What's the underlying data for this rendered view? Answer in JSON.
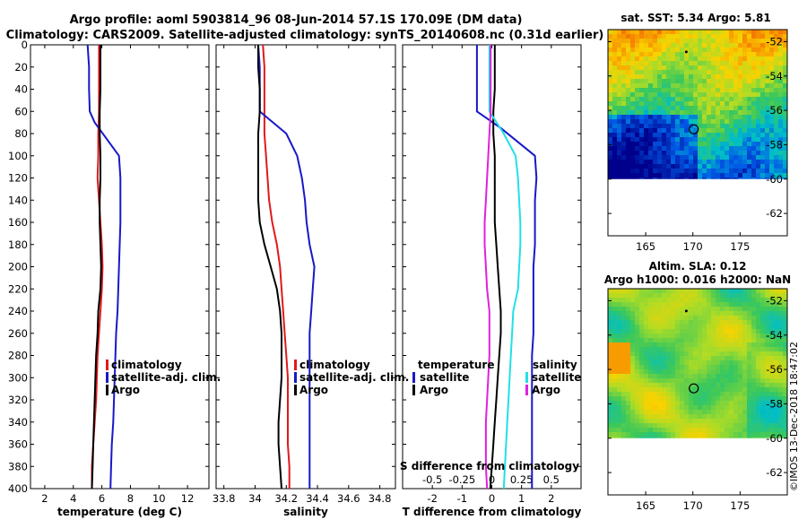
{
  "figure": {
    "title_line1": "Argo profile: aoml 5903814_96 08-Jun-2014 57.1S 170.09E (DM data)",
    "title_line2": "Climatology: CARS2009. Satellite-adjusted climatology: synTS_20140608.nc (0.31d earlier)",
    "credit": "©IMOS 13-Dec-2018 18:47:02"
  },
  "colors": {
    "climatology": "#e0191b",
    "satellite": "#1818c8",
    "argo": "#000000",
    "sal_satellite": "#22e0e6",
    "sal_argo": "#e020e0"
  },
  "depth_ticks": [
    "0",
    "20",
    "40",
    "60",
    "80",
    "100",
    "120",
    "140",
    "160",
    "180",
    "200",
    "220",
    "240",
    "260",
    "280",
    "300",
    "320",
    "340",
    "360",
    "380",
    "400"
  ],
  "chart_data": [
    {
      "id": "temperature",
      "type": "line",
      "xlabel": "temperature (deg C)",
      "ylabel": "depth",
      "xlim": [
        1,
        13.5
      ],
      "ylim": [
        400,
        0
      ],
      "xticks": [
        "2",
        "4",
        "6",
        "8",
        "10",
        "12"
      ],
      "xtick_values": [
        2,
        4,
        6,
        8,
        10,
        12
      ],
      "legend": [
        "climatology",
        "satellite-adj. clim.",
        "Argo"
      ],
      "series": [
        {
          "name": "climatology",
          "color": "#e0191b",
          "x": [
            5.8,
            5.8,
            5.8,
            5.8,
            5.75,
            5.75,
            5.7,
            5.8,
            5.9,
            6.0,
            6.05,
            6.0,
            5.9,
            5.8,
            5.7,
            5.65,
            5.6,
            5.5,
            5.4,
            5.3,
            5.3
          ],
          "y": [
            0,
            20,
            40,
            60,
            80,
            100,
            120,
            140,
            160,
            180,
            200,
            220,
            240,
            260,
            280,
            300,
            320,
            340,
            360,
            380,
            400
          ]
        },
        {
          "name": "satellite-adj. clim.",
          "color": "#1818c8",
          "x": [
            5.0,
            5.1,
            5.1,
            5.15,
            5.5,
            7.2,
            7.3,
            7.3,
            7.3,
            7.25,
            7.2,
            7.15,
            7.1,
            7.0,
            6.95,
            6.9,
            6.85,
            6.8,
            6.7,
            6.65,
            6.6
          ],
          "y": [
            0,
            20,
            40,
            60,
            70,
            100,
            120,
            140,
            160,
            180,
            200,
            220,
            240,
            260,
            280,
            300,
            320,
            340,
            360,
            380,
            400
          ]
        },
        {
          "name": "Argo",
          "color": "#000000",
          "x": [
            5.9,
            5.9,
            5.9,
            5.85,
            5.85,
            5.9,
            5.9,
            5.85,
            5.85,
            5.9,
            5.95,
            5.9,
            5.75,
            5.7,
            5.6,
            5.55,
            5.5,
            5.45,
            5.4,
            5.35,
            5.3
          ],
          "y": [
            0,
            20,
            40,
            60,
            80,
            100,
            120,
            140,
            160,
            180,
            200,
            220,
            240,
            260,
            280,
            300,
            320,
            340,
            360,
            380,
            400
          ]
        }
      ]
    },
    {
      "id": "salinity",
      "type": "line",
      "xlabel": "salinity",
      "ylabel": "depth",
      "xlim": [
        33.75,
        34.9
      ],
      "ylim": [
        400,
        0
      ],
      "xticks": [
        "33.8",
        "34",
        "34.2",
        "34.4",
        "34.6",
        "34.8"
      ],
      "xtick_values": [
        33.8,
        34.0,
        34.2,
        34.4,
        34.6,
        34.8
      ],
      "legend": [
        "climatology",
        "satellite-adj. clim.",
        "Argo"
      ],
      "series": [
        {
          "name": "climatology",
          "color": "#e0191b",
          "x": [
            34.05,
            34.06,
            34.06,
            34.06,
            34.06,
            34.07,
            34.08,
            34.09,
            34.11,
            34.14,
            34.16,
            34.17,
            34.18,
            34.19,
            34.2,
            34.21,
            34.21,
            34.21,
            34.21,
            34.22,
            34.22
          ],
          "y": [
            0,
            20,
            40,
            60,
            80,
            100,
            120,
            140,
            160,
            180,
            200,
            220,
            240,
            260,
            280,
            300,
            320,
            340,
            360,
            380,
            400
          ]
        },
        {
          "name": "satellite-adj. clim.",
          "color": "#1818c8",
          "x": [
            34.02,
            34.03,
            34.03,
            34.03,
            34.2,
            34.27,
            34.3,
            34.32,
            34.33,
            34.35,
            34.38,
            34.37,
            34.36,
            34.35,
            34.35,
            34.35,
            34.35,
            34.35,
            34.35,
            34.35,
            34.35
          ],
          "y": [
            0,
            20,
            40,
            60,
            80,
            100,
            120,
            140,
            160,
            180,
            200,
            220,
            240,
            260,
            280,
            300,
            320,
            340,
            360,
            380,
            400
          ]
        },
        {
          "name": "Argo",
          "color": "#000000",
          "x": [
            34.02,
            34.02,
            34.03,
            34.03,
            34.02,
            34.02,
            34.02,
            34.02,
            34.03,
            34.06,
            34.1,
            34.14,
            34.16,
            34.17,
            34.17,
            34.17,
            34.16,
            34.15,
            34.15,
            34.16,
            34.17
          ],
          "y": [
            0,
            20,
            40,
            60,
            80,
            100,
            120,
            140,
            160,
            180,
            200,
            220,
            240,
            260,
            280,
            300,
            320,
            340,
            360,
            380,
            400
          ]
        }
      ]
    },
    {
      "id": "difference",
      "type": "line",
      "xlabel": "T difference from climatology",
      "xlabel_top": "S difference from climatology",
      "ylabel": "depth",
      "xlim": [
        -3,
        3
      ],
      "ylim": [
        400,
        0
      ],
      "xticks": [
        "-2",
        "-1",
        "0",
        "1",
        "2"
      ],
      "xtick_values": [
        -2,
        -1,
        0,
        1,
        2
      ],
      "sticks": [
        "-0.5",
        "-0.25",
        "0",
        "0.25",
        "0.5"
      ],
      "stick_values": [
        -0.5,
        -0.25,
        0,
        0.25,
        0.5
      ],
      "legend_temperature_title": "temperature",
      "legend_temperature": [
        "satellite",
        "Argo"
      ],
      "legend_salinity_title": "salinity",
      "legend_salinity": [
        "satellite",
        "Argo"
      ],
      "series": [
        {
          "name": "T satellite",
          "color": "#1818c8",
          "axis": "T",
          "x": [
            -0.5,
            -0.5,
            -0.5,
            -0.5,
            0.3,
            1.45,
            1.5,
            1.45,
            1.45,
            1.45,
            1.4,
            1.4,
            1.4,
            1.4,
            1.35,
            1.35,
            1.35,
            1.35,
            1.35,
            1.35,
            1.35
          ],
          "y": [
            0,
            20,
            40,
            60,
            75,
            100,
            120,
            140,
            160,
            180,
            200,
            220,
            240,
            260,
            280,
            300,
            320,
            340,
            360,
            380,
            400
          ]
        },
        {
          "name": "T Argo",
          "color": "#000000",
          "axis": "T",
          "x": [
            0.1,
            0.1,
            0.1,
            0.05,
            0.05,
            0.1,
            0.1,
            0.1,
            0.1,
            0.15,
            0.2,
            0.25,
            0.3,
            0.3,
            0.25,
            0.2,
            0.15,
            0.1,
            0.05,
            0.0,
            -0.05
          ],
          "y": [
            0,
            20,
            40,
            60,
            80,
            100,
            120,
            140,
            160,
            180,
            200,
            220,
            240,
            260,
            280,
            300,
            320,
            340,
            360,
            380,
            400
          ]
        },
        {
          "name": "S satellite",
          "color": "#22e0e6",
          "axis": "S",
          "x": [
            -0.02,
            -0.02,
            -0.02,
            -0.02,
            0.1,
            0.2,
            0.22,
            0.23,
            0.24,
            0.24,
            0.23,
            0.22,
            0.18,
            0.17,
            0.16,
            0.15,
            0.14,
            0.13,
            0.12,
            0.11,
            0.1
          ],
          "y": [
            0,
            20,
            40,
            60,
            80,
            100,
            120,
            140,
            160,
            180,
            200,
            220,
            240,
            260,
            280,
            300,
            320,
            340,
            360,
            380,
            400
          ]
        },
        {
          "name": "S Argo",
          "color": "#e020e0",
          "axis": "S",
          "x": [
            -0.01,
            -0.01,
            -0.01,
            -0.01,
            -0.02,
            -0.03,
            -0.04,
            -0.05,
            -0.06,
            -0.06,
            -0.05,
            -0.04,
            -0.02,
            -0.02,
            -0.02,
            -0.03,
            -0.04,
            -0.05,
            -0.05,
            -0.05,
            -0.04
          ],
          "y": [
            0,
            20,
            40,
            60,
            80,
            100,
            120,
            140,
            160,
            180,
            200,
            220,
            240,
            260,
            280,
            300,
            320,
            340,
            360,
            380,
            400
          ]
        }
      ]
    },
    {
      "id": "sst_map",
      "type": "heatmap",
      "title": "sat. SST: 5.34 Argo: 5.81",
      "xticks": [
        "165",
        "170",
        "175"
      ],
      "xtick_values": [
        165,
        170,
        175
      ],
      "yticks": [
        "-52",
        "-54",
        "-56",
        "-58",
        "-60",
        "-62"
      ],
      "ytick_values": [
        -52,
        -54,
        -56,
        -58,
        -60,
        -62
      ],
      "xlim": [
        161,
        180
      ],
      "ylim": [
        -63.3,
        -51.3
      ],
      "data_ylim": [
        -60,
        -51.3
      ],
      "argo_position": [
        170.09,
        -57.1
      ]
    },
    {
      "id": "sla_map",
      "type": "heatmap",
      "title_line1": "Altim. SLA: 0.12",
      "title_line2": "Argo h1000: 0.016 h2000: NaN",
      "xticks": [
        "165",
        "170",
        "175"
      ],
      "xtick_values": [
        165,
        170,
        175
      ],
      "yticks": [
        "-52",
        "-54",
        "-56",
        "-58",
        "-60",
        "-62"
      ],
      "ytick_values": [
        -52,
        -54,
        -56,
        -58,
        -60,
        -62
      ],
      "xlim": [
        161,
        180
      ],
      "ylim": [
        -63.3,
        -51.3
      ],
      "data_ylim": [
        -60,
        -51.3
      ],
      "argo_position": [
        170.09,
        -57.1
      ]
    }
  ]
}
